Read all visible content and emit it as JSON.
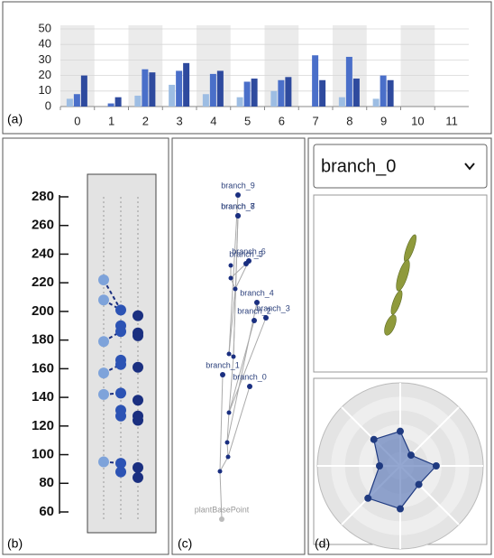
{
  "chart_data": [
    {
      "type": "bar",
      "categories": [
        "0",
        "1",
        "2",
        "3",
        "4",
        "5",
        "6",
        "7",
        "8",
        "9",
        "10",
        "11"
      ],
      "series": [
        {
          "color": "#9dbde3",
          "values": [
            5,
            0,
            7,
            14,
            8,
            6,
            10,
            0,
            6,
            5,
            0,
            0
          ]
        },
        {
          "color": "#4a6fc9",
          "values": [
            8,
            2,
            24,
            23,
            21,
            16,
            17,
            33,
            32,
            20,
            0,
            0
          ]
        },
        {
          "color": "#2e4a9e",
          "values": [
            20,
            6,
            22,
            28,
            23,
            18,
            19,
            17,
            18,
            17,
            0,
            0
          ]
        }
      ],
      "ylim": [
        0,
        50
      ],
      "yticks": [
        0,
        10,
        20,
        30,
        40,
        50
      ],
      "grid": true,
      "label": "(a)"
    },
    {
      "type": "dot",
      "series": [
        {
          "color": "#7ea3da",
          "values": [
            222,
            208,
            179,
            157,
            142,
            95
          ]
        },
        {
          "color": "#2c53b4",
          "values": [
            201,
            190,
            186,
            166,
            163,
            143,
            131,
            127,
            94,
            88
          ]
        },
        {
          "color": "#1a2f80",
          "values": [
            197,
            185,
            183,
            161,
            138,
            127,
            124,
            91,
            84
          ]
        }
      ],
      "ylim": [
        60,
        280
      ],
      "yticks": [
        60,
        80,
        100,
        120,
        140,
        160,
        180,
        200,
        220,
        240,
        260,
        280
      ],
      "label": "(b)"
    },
    {
      "type": "radar",
      "color": "#5a78b8",
      "values": [
        2.5,
        1.1,
        2.6,
        1.9,
        3.1,
        3.3,
        1.5,
        2.7
      ],
      "rlim": [
        0,
        6
      ],
      "rticks": [
        1,
        2,
        3,
        4,
        5,
        6
      ],
      "label": "(d)"
    }
  ],
  "diagram": {
    "label": "(c)",
    "nodes": [
      "branch_9",
      "branch_8",
      "branch_7",
      "branch_6",
      "branch_5",
      "branch_4",
      "branch_2",
      "branch_3",
      "branch_1",
      "branch_0",
      "plantBasePoint"
    ]
  },
  "dropdown": {
    "selected": "branch_0"
  }
}
